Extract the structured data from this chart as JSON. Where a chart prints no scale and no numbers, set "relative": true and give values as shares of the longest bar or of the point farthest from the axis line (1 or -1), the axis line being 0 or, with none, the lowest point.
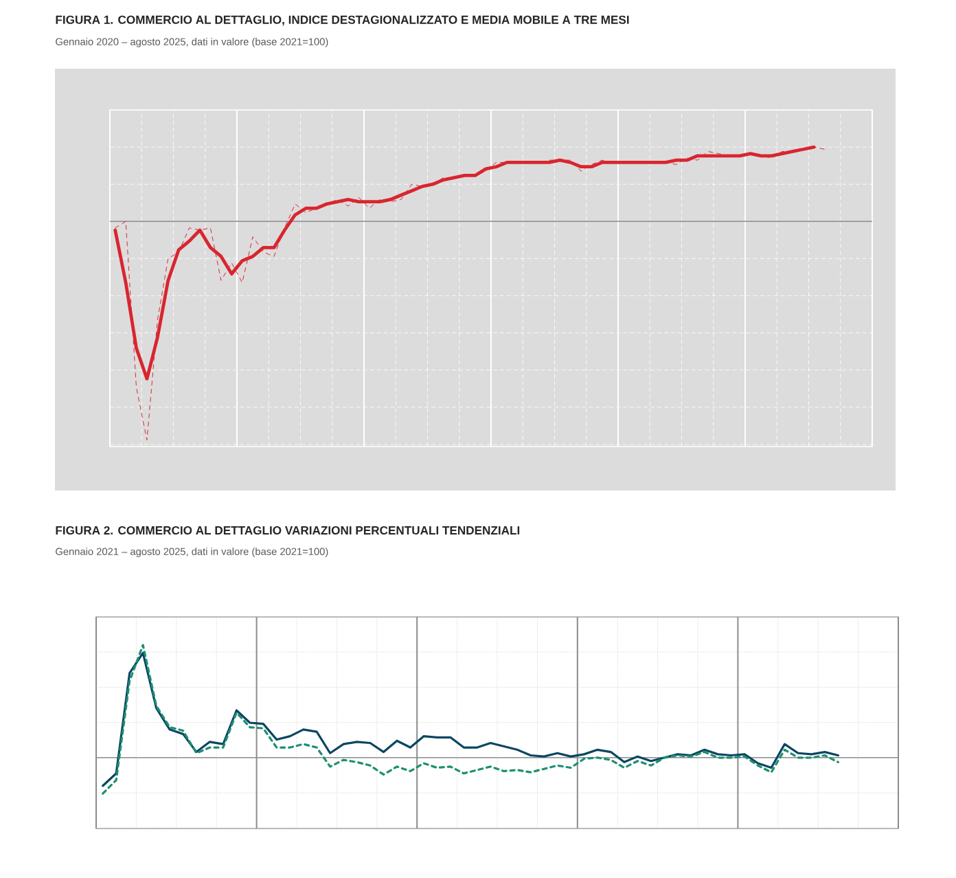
{
  "chart_data": [
    {
      "type": "line",
      "title": "FIGURA 1. COMMERCIO AL DETTAGLIO, INDICE DESTAGIONALIZZATO E MEDIA MOBILE A TRE MESI",
      "subtitle": "Gennaio 2020 – agosto 2025, dati in valore (base 2021=100)",
      "relative": true,
      "grid": true,
      "tick_labels": false,
      "categories": [
        null,
        null,
        null,
        null,
        null,
        null,
        null,
        null,
        null,
        null,
        null,
        null,
        null,
        null,
        null,
        null,
        null,
        null,
        null,
        null,
        null,
        null,
        null,
        null,
        null,
        null,
        null,
        null,
        null,
        null,
        null,
        null,
        null,
        null,
        null,
        null,
        null,
        null,
        null,
        null,
        null,
        null,
        null,
        null,
        null,
        null,
        null,
        null,
        null,
        null,
        null,
        null,
        null,
        null,
        null,
        null,
        null,
        null,
        null,
        null,
        null,
        null,
        null,
        null,
        null,
        null,
        null,
        null,
        null,
        null,
        null,
        null
      ],
      "series": [
        {
          "color": "#d9252f",
          "line_style": "dashed",
          "values": [
            -0.03,
            0.0,
            -0.76,
            -1,
            -0.45,
            -0.17,
            -0.14,
            -0.03,
            -0.04,
            -0.03,
            -0.27,
            -0.19,
            -0.28,
            -0.07,
            -0.14,
            -0.16,
            -0.03,
            0.08,
            0.04,
            0.06,
            0.08,
            0.1,
            0.07,
            0.11,
            0.06,
            0.1,
            0.09,
            0.1,
            0.17,
            0.16,
            0.17,
            0.2,
            0.2,
            0.21,
            0.21,
            0.23,
            0.27,
            0.27,
            0.27,
            0.27,
            0.27,
            0.28,
            0.28,
            0.28,
            0.23,
            0.26,
            0.28,
            0.27,
            0.27,
            0.27,
            0.27,
            0.27,
            0.27,
            0.26,
            0.29,
            0.28,
            0.32,
            0.31,
            0.3,
            0.3,
            0.31,
            0.3,
            0.29,
            0.32,
            0.32,
            0.33,
            0.34,
            0.33,
            null,
            null,
            null,
            null
          ]
        },
        {
          "color": "#d9252f",
          "line_style": "solid",
          "values": [
            -0.04,
            -0.28,
            -0.58,
            -0.72,
            -0.53,
            -0.27,
            -0.13,
            -0.09,
            -0.04,
            -0.12,
            -0.16,
            -0.24,
            -0.18,
            -0.16,
            -0.12,
            -0.12,
            -0.04,
            0.03,
            0.06,
            0.06,
            0.08,
            0.09,
            0.1,
            0.09,
            0.09,
            0.09,
            0.1,
            0.12,
            0.14,
            0.16,
            0.17,
            0.19,
            0.2,
            0.21,
            0.21,
            0.24,
            0.25,
            0.27,
            0.27,
            0.27,
            0.27,
            0.27,
            0.28,
            0.27,
            0.25,
            0.25,
            0.27,
            0.27,
            0.27,
            0.27,
            0.27,
            0.27,
            0.27,
            0.28,
            0.28,
            0.3,
            0.3,
            0.3,
            0.3,
            0.3,
            0.31,
            0.3,
            0.3,
            0.31,
            0.32,
            0.33,
            0.34,
            null,
            null,
            null,
            null,
            null
          ]
        }
      ]
    },
    {
      "type": "line",
      "title": "FIGURA 2. COMMERCIO AL DETTAGLIO VARIAZIONI PERCENTUALI TENDENZIALI",
      "subtitle": "Gennaio 2021 – agosto 2025, dati in valore (base 2021=100)",
      "relative": true,
      "grid": true,
      "tick_labels": false,
      "categories": [
        null,
        null,
        null,
        null,
        null,
        null,
        null,
        null,
        null,
        null,
        null,
        null,
        null,
        null,
        null,
        null,
        null,
        null,
        null,
        null,
        null,
        null,
        null,
        null,
        null,
        null,
        null,
        null,
        null,
        null,
        null,
        null,
        null,
        null,
        null,
        null,
        null,
        null,
        null,
        null,
        null,
        null,
        null,
        null,
        null,
        null,
        null,
        null,
        null,
        null,
        null,
        null,
        null,
        null,
        null,
        null,
        null,
        null,
        null,
        null
      ],
      "series": [
        {
          "color": "#0b4662",
          "line_style": "solid",
          "values": [
            -0.25,
            -0.14,
            0.75,
            0.93,
            0.44,
            0.25,
            0.21,
            0.05,
            0.14,
            0.12,
            0.42,
            0.31,
            0.3,
            0.16,
            0.19,
            0.25,
            0.23,
            0.04,
            0.12,
            0.14,
            0.13,
            0.05,
            0.15,
            0.09,
            0.19,
            0.18,
            0.18,
            0.09,
            0.09,
            0.13,
            0.1,
            0.07,
            0.02,
            0.01,
            0.04,
            0.01,
            0.03,
            0.07,
            0.05,
            -0.04,
            0.01,
            -0.03,
            0.0,
            0.03,
            0.02,
            0.07,
            0.03,
            0.02,
            0.03,
            -0.05,
            -0.09,
            0.12,
            0.04,
            0.03,
            0.05,
            0.02,
            null,
            null,
            null,
            null
          ]
        },
        {
          "color": "#1b9070",
          "line_style": "dashed",
          "values": [
            -0.32,
            -0.2,
            0.68,
            1,
            0.46,
            0.27,
            0.24,
            0.04,
            0.09,
            0.09,
            0.4,
            0.27,
            0.26,
            0.09,
            0.09,
            0.12,
            0.09,
            -0.08,
            -0.02,
            -0.04,
            -0.07,
            -0.15,
            -0.08,
            -0.12,
            -0.05,
            -0.09,
            -0.08,
            -0.14,
            -0.11,
            -0.08,
            -0.12,
            -0.11,
            -0.13,
            -0.1,
            -0.07,
            -0.09,
            -0.01,
            0.0,
            -0.02,
            -0.09,
            -0.03,
            -0.07,
            0.0,
            0.02,
            0.01,
            0.05,
            0.0,
            0.0,
            0.01,
            -0.07,
            -0.13,
            0.07,
            0.0,
            0.0,
            0.02,
            -0.04,
            null,
            null,
            null,
            null
          ]
        }
      ]
    }
  ]
}
